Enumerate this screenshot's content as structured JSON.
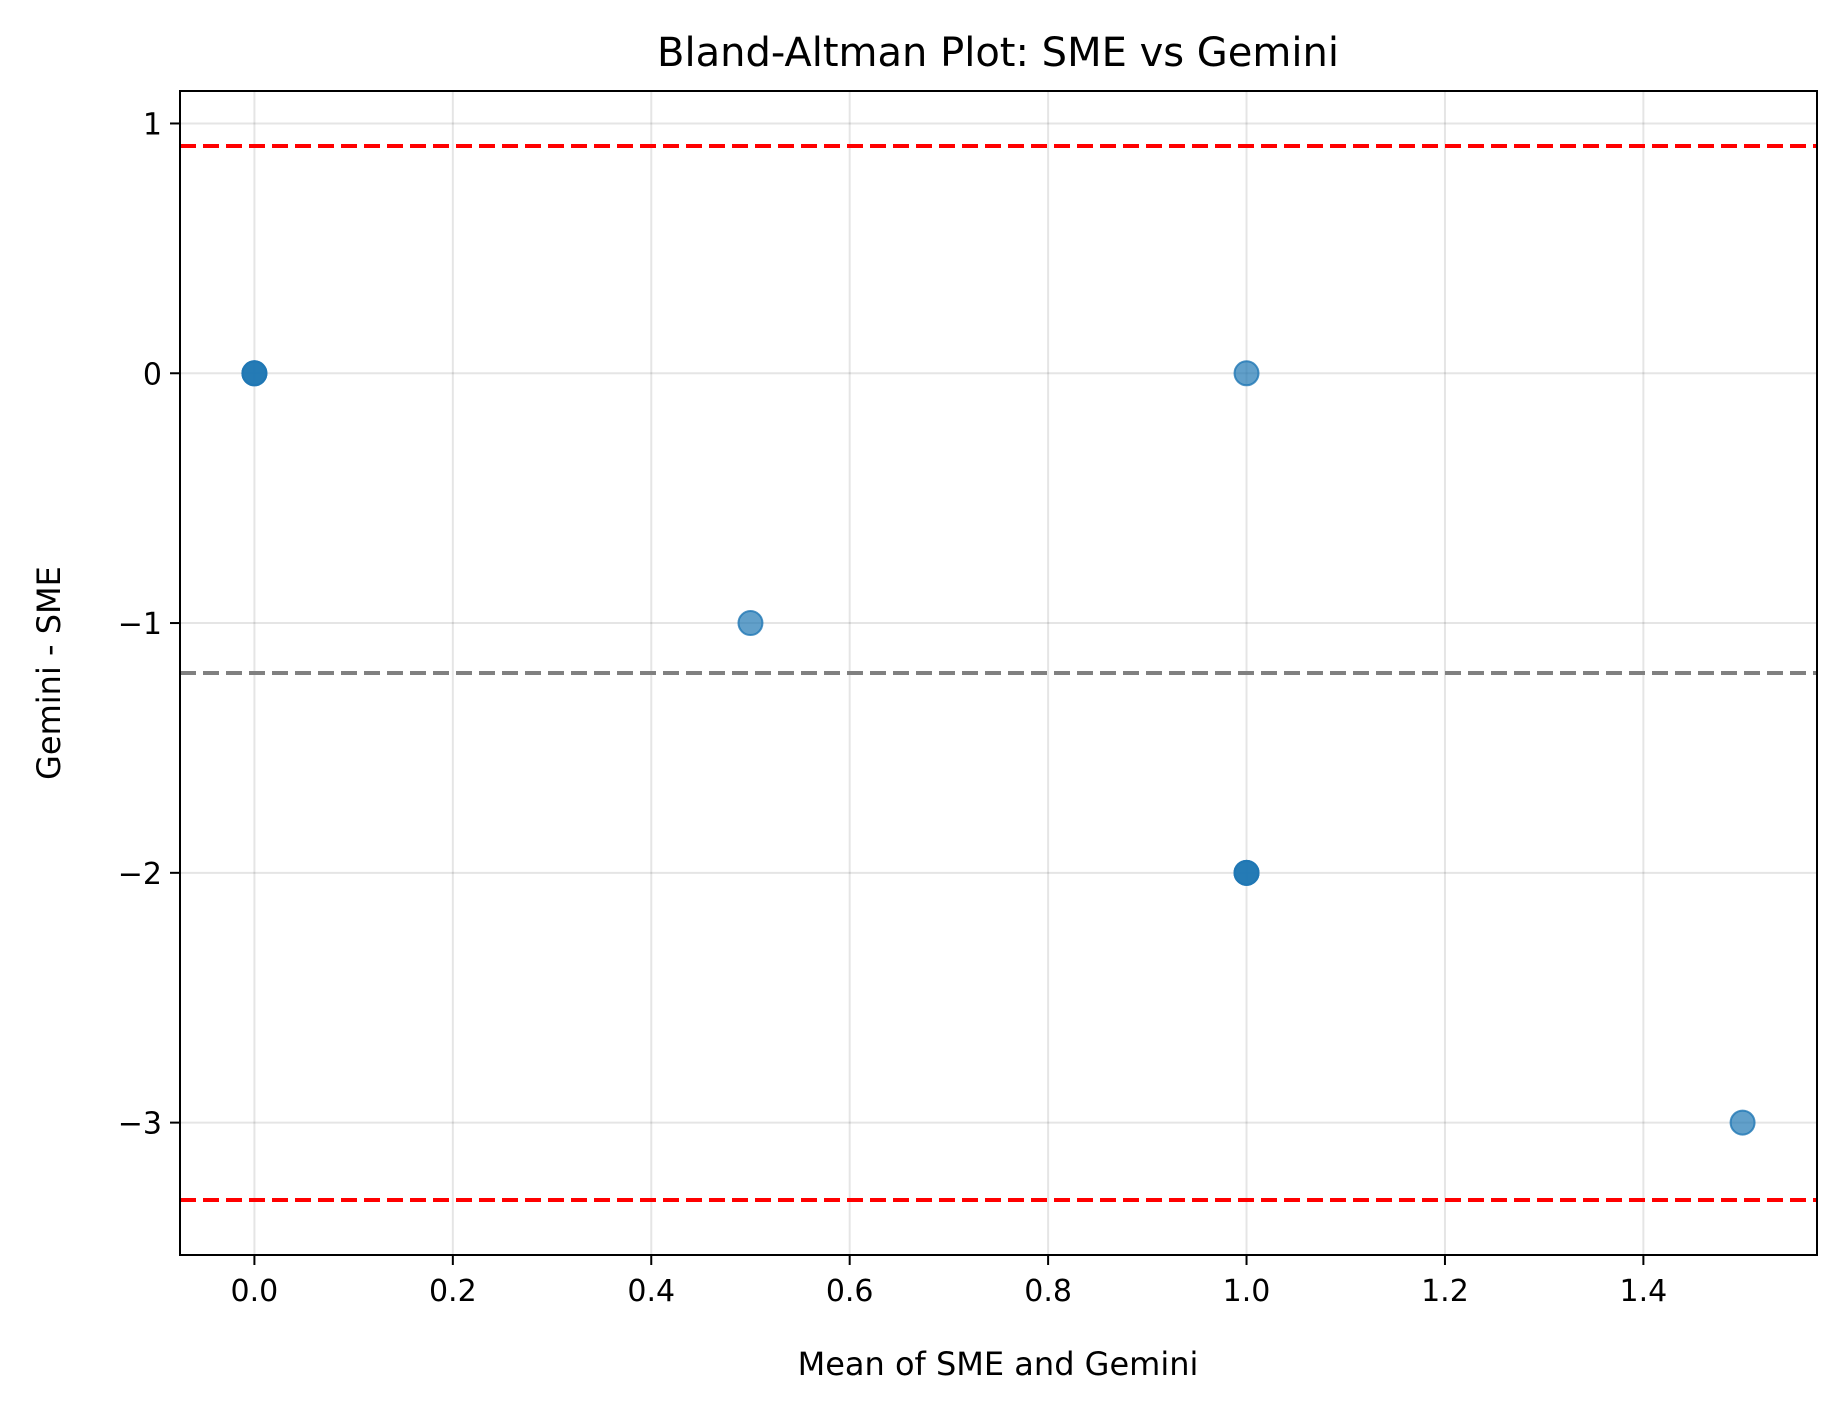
{
  "chart_data": {
    "type": "scatter",
    "title": "Bland-Altman Plot: SME vs Gemini",
    "xlabel": "Mean of SME and Gemini",
    "ylabel": "Gemini - SME",
    "xlim": [
      -0.075,
      1.575
    ],
    "ylim": [
      -3.53,
      1.13
    ],
    "xticks": [
      0.0,
      0.2,
      0.4,
      0.6,
      0.8,
      1.0,
      1.2,
      1.4
    ],
    "xtick_labels": [
      "0.0",
      "0.2",
      "0.4",
      "0.6",
      "0.8",
      "1.0",
      "1.2",
      "1.4"
    ],
    "yticks": [
      1,
      0,
      -1,
      -2,
      -3
    ],
    "ytick_labels": [
      "1",
      "0",
      "−1",
      "−2",
      "−3"
    ],
    "grid": true,
    "points": [
      {
        "x": 0.0,
        "y": 0
      },
      {
        "x": 0.0,
        "y": 0
      },
      {
        "x": 0.0,
        "y": 0
      },
      {
        "x": 0.5,
        "y": -1
      },
      {
        "x": 1.0,
        "y": 0
      },
      {
        "x": 1.0,
        "y": -2
      },
      {
        "x": 1.0,
        "y": -2
      },
      {
        "x": 1.0,
        "y": -2
      },
      {
        "x": 1.5,
        "y": -3
      }
    ],
    "reference_lines": [
      {
        "y": 0.91,
        "color": "#ff0000",
        "style": "dashed"
      },
      {
        "y": -1.2,
        "color": "#808080",
        "style": "dashed"
      },
      {
        "y": -3.31,
        "color": "#ff0000",
        "style": "dashed"
      }
    ],
    "point_color": "#1f77b4"
  }
}
